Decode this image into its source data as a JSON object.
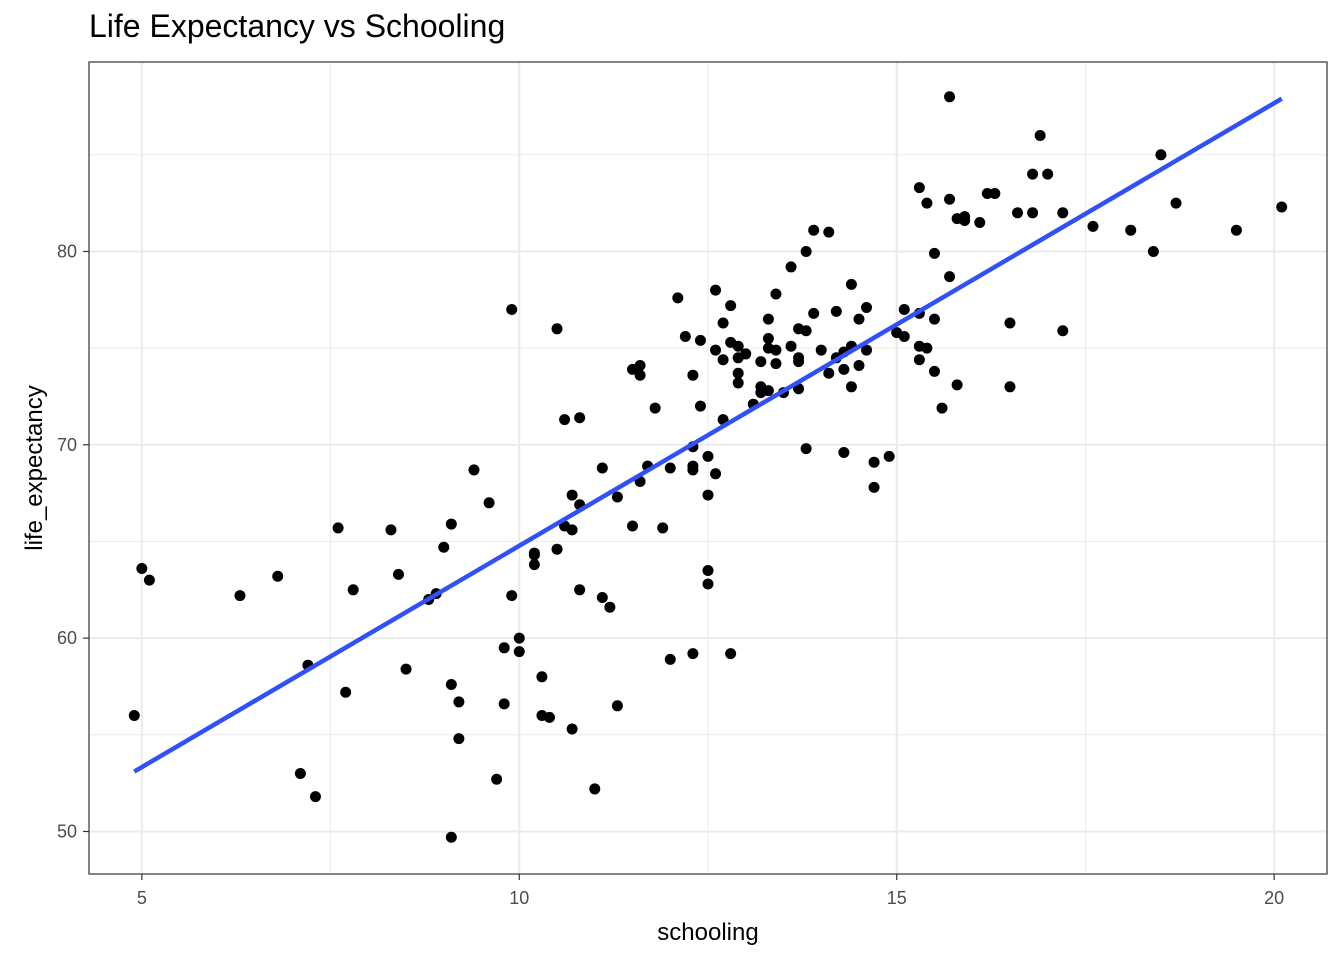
{
  "chart_data": {
    "type": "scatter",
    "title": "Life Expectancy vs Schooling",
    "xlabel": "schooling",
    "ylabel": "life_expectancy",
    "xlim": [
      4.3,
      20.7
    ],
    "ylim": [
      47.8,
      89.8
    ],
    "x_ticks": [
      5,
      10,
      15,
      20
    ],
    "y_ticks": [
      50,
      60,
      70,
      80
    ],
    "grid": true,
    "colors": {
      "points": "#000000",
      "trend": "#3050F8",
      "grid": "#EBEBEB",
      "panel_border": "#333333"
    },
    "trend_line": {
      "x": [
        4.9,
        20.1
      ],
      "y": [
        53.1,
        87.9
      ]
    },
    "points": [
      [
        4.9,
        56.0
      ],
      [
        5.0,
        63.6
      ],
      [
        5.1,
        63.0
      ],
      [
        6.3,
        62.2
      ],
      [
        6.8,
        63.2
      ],
      [
        7.1,
        53.0
      ],
      [
        7.2,
        58.6
      ],
      [
        7.3,
        51.8
      ],
      [
        7.6,
        65.7
      ],
      [
        7.7,
        57.2
      ],
      [
        7.8,
        62.5
      ],
      [
        8.3,
        65.6
      ],
      [
        8.4,
        63.3
      ],
      [
        8.5,
        58.4
      ],
      [
        8.8,
        62.0
      ],
      [
        8.9,
        62.3
      ],
      [
        9.0,
        64.7
      ],
      [
        9.1,
        65.9
      ],
      [
        9.1,
        57.6
      ],
      [
        9.1,
        49.7
      ],
      [
        9.2,
        56.7
      ],
      [
        9.2,
        54.8
      ],
      [
        9.4,
        68.7
      ],
      [
        9.6,
        67.0
      ],
      [
        9.7,
        52.7
      ],
      [
        9.8,
        59.5
      ],
      [
        9.8,
        56.6
      ],
      [
        9.9,
        77.0
      ],
      [
        9.9,
        62.2
      ],
      [
        10.0,
        60.0
      ],
      [
        10.0,
        59.3
      ],
      [
        10.2,
        64.4
      ],
      [
        10.2,
        64.3
      ],
      [
        10.2,
        63.8
      ],
      [
        10.3,
        58.0
      ],
      [
        10.3,
        56.0
      ],
      [
        10.4,
        55.9
      ],
      [
        10.5,
        76.0
      ],
      [
        10.5,
        64.6
      ],
      [
        10.6,
        71.3
      ],
      [
        10.6,
        65.8
      ],
      [
        10.7,
        67.4
      ],
      [
        10.7,
        65.6
      ],
      [
        10.7,
        55.3
      ],
      [
        10.8,
        71.4
      ],
      [
        10.8,
        66.9
      ],
      [
        10.8,
        62.5
      ],
      [
        11.0,
        52.2
      ],
      [
        11.1,
        68.8
      ],
      [
        11.1,
        62.1
      ],
      [
        11.2,
        61.6
      ],
      [
        11.3,
        67.3
      ],
      [
        11.3,
        56.5
      ],
      [
        11.5,
        73.9
      ],
      [
        11.5,
        65.8
      ],
      [
        11.6,
        74.1
      ],
      [
        11.6,
        73.6
      ],
      [
        11.6,
        68.1
      ],
      [
        11.7,
        68.9
      ],
      [
        11.8,
        71.9
      ],
      [
        11.9,
        65.7
      ],
      [
        12.0,
        68.8
      ],
      [
        12.0,
        58.9
      ],
      [
        12.1,
        77.6
      ],
      [
        12.2,
        75.6
      ],
      [
        12.3,
        73.6
      ],
      [
        12.3,
        69.9
      ],
      [
        12.3,
        68.9
      ],
      [
        12.3,
        68.7
      ],
      [
        12.3,
        59.2
      ],
      [
        12.4,
        75.4
      ],
      [
        12.4,
        72.0
      ],
      [
        12.5,
        69.4
      ],
      [
        12.5,
        67.4
      ],
      [
        12.5,
        63.5
      ],
      [
        12.5,
        62.8
      ],
      [
        12.6,
        78.0
      ],
      [
        12.6,
        74.9
      ],
      [
        12.6,
        68.5
      ],
      [
        12.7,
        76.3
      ],
      [
        12.7,
        74.4
      ],
      [
        12.7,
        71.3
      ],
      [
        12.8,
        77.2
      ],
      [
        12.8,
        75.3
      ],
      [
        12.8,
        59.2
      ],
      [
        12.9,
        75.1
      ],
      [
        12.9,
        74.5
      ],
      [
        12.9,
        73.7
      ],
      [
        12.9,
        73.2
      ],
      [
        13.0,
        74.7
      ],
      [
        13.1,
        72.1
      ],
      [
        13.2,
        74.3
      ],
      [
        13.2,
        73.0
      ],
      [
        13.2,
        72.7
      ],
      [
        13.3,
        76.5
      ],
      [
        13.3,
        75.5
      ],
      [
        13.3,
        75.0
      ],
      [
        13.3,
        72.8
      ],
      [
        13.4,
        77.8
      ],
      [
        13.4,
        74.9
      ],
      [
        13.4,
        74.2
      ],
      [
        13.5,
        72.7
      ],
      [
        13.6,
        79.2
      ],
      [
        13.6,
        75.1
      ],
      [
        13.7,
        76.0
      ],
      [
        13.7,
        74.5
      ],
      [
        13.7,
        74.3
      ],
      [
        13.7,
        72.9
      ],
      [
        13.8,
        80.0
      ],
      [
        13.8,
        75.9
      ],
      [
        13.8,
        69.8
      ],
      [
        13.9,
        81.1
      ],
      [
        13.9,
        76.8
      ],
      [
        14.0,
        74.9
      ],
      [
        14.1,
        81.0
      ],
      [
        14.1,
        73.7
      ],
      [
        14.2,
        76.9
      ],
      [
        14.2,
        74.5
      ],
      [
        14.3,
        74.8
      ],
      [
        14.3,
        73.9
      ],
      [
        14.3,
        69.6
      ],
      [
        14.4,
        78.3
      ],
      [
        14.4,
        75.1
      ],
      [
        14.4,
        73.0
      ],
      [
        14.5,
        76.5
      ],
      [
        14.5,
        74.1
      ],
      [
        14.6,
        77.1
      ],
      [
        14.6,
        74.9
      ],
      [
        14.7,
        69.1
      ],
      [
        14.7,
        67.8
      ],
      [
        14.9,
        69.4
      ],
      [
        15.0,
        75.8
      ],
      [
        15.1,
        77.0
      ],
      [
        15.1,
        75.6
      ],
      [
        15.3,
        83.3
      ],
      [
        15.3,
        76.8
      ],
      [
        15.3,
        75.1
      ],
      [
        15.3,
        74.4
      ],
      [
        15.4,
        82.5
      ],
      [
        15.4,
        75.0
      ],
      [
        15.5,
        79.9
      ],
      [
        15.5,
        76.5
      ],
      [
        15.5,
        73.8
      ],
      [
        15.6,
        71.9
      ],
      [
        15.7,
        88.0
      ],
      [
        15.7,
        82.7
      ],
      [
        15.7,
        78.7
      ],
      [
        15.8,
        81.7
      ],
      [
        15.8,
        73.1
      ],
      [
        15.9,
        81.8
      ],
      [
        15.9,
        81.6
      ],
      [
        16.1,
        81.5
      ],
      [
        16.2,
        83.0
      ],
      [
        16.3,
        83.0
      ],
      [
        16.5,
        76.3
      ],
      [
        16.5,
        73.0
      ],
      [
        16.6,
        82.0
      ],
      [
        16.8,
        84.0
      ],
      [
        16.8,
        82.0
      ],
      [
        16.9,
        86.0
      ],
      [
        17.0,
        84.0
      ],
      [
        17.2,
        82.0
      ],
      [
        17.2,
        75.9
      ],
      [
        17.6,
        81.3
      ],
      [
        18.1,
        81.1
      ],
      [
        18.4,
        80.0
      ],
      [
        18.5,
        85.0
      ],
      [
        18.7,
        82.5
      ],
      [
        19.5,
        81.1
      ],
      [
        20.1,
        82.3
      ]
    ]
  }
}
